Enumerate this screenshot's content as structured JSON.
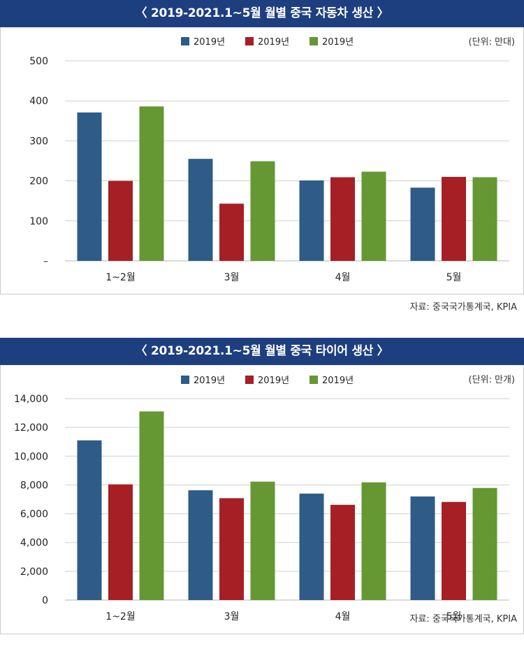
{
  "chart_data": [
    {
      "type": "bar",
      "title": "〈 2019-2021.1~5월 월별 중국 자동차 생산 〉",
      "unit": "(단위: 만대)",
      "source": "자료: 중국국가통계국, KPIA",
      "categories": [
        "1~2월",
        "3월",
        "4월",
        "5월"
      ],
      "series": [
        {
          "name": "2019년",
          "color": "#2e5b87",
          "values": [
            371,
            255,
            201,
            183
          ]
        },
        {
          "name": "2019년",
          "color": "#a61f24",
          "values": [
            200,
            143,
            209,
            210
          ]
        },
        {
          "name": "2019년",
          "color": "#659732",
          "values": [
            386,
            249,
            223,
            209
          ]
        }
      ],
      "ylim": [
        0,
        500
      ],
      "yticks": [
        0,
        100,
        200,
        300,
        400,
        500
      ],
      "ytick_labels": [
        "–",
        "100",
        "200",
        "300",
        "400",
        "500"
      ],
      "legend": "top-center",
      "grid": true
    },
    {
      "type": "bar",
      "title": "〈 2019-2021.1~5월 월별 중국 타이어 생산 〉",
      "unit": "(단위: 만개)",
      "source": "자료: 중국국가통계국, KPIA",
      "categories": [
        "1~2월",
        "3월",
        "4월",
        "5월"
      ],
      "series": [
        {
          "name": "2019년",
          "color": "#2e5b87",
          "values": [
            11100,
            7630,
            7400,
            7200
          ]
        },
        {
          "name": "2019년",
          "color": "#a61f24",
          "values": [
            8040,
            7080,
            6620,
            6820
          ]
        },
        {
          "name": "2019년",
          "color": "#659732",
          "values": [
            13110,
            8230,
            8180,
            7790
          ]
        }
      ],
      "ylim": [
        0,
        14000
      ],
      "yticks": [
        0,
        2000,
        4000,
        6000,
        8000,
        10000,
        12000,
        14000
      ],
      "ytick_labels": [
        "0",
        "2,000",
        "4,000",
        "6,000",
        "8,000",
        "10,000",
        "12,000",
        "14,000"
      ],
      "legend": "top-center",
      "grid": true
    }
  ]
}
